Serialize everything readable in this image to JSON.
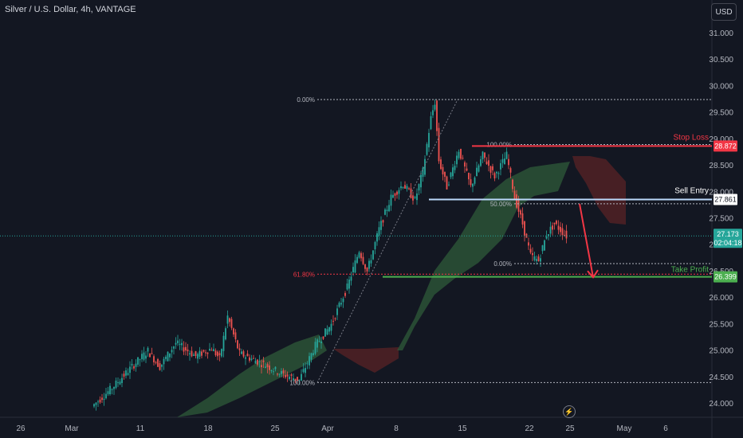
{
  "header": {
    "title": "Silver / U.S. Dollar, 4h, VANTAGE",
    "currency_button": "USD"
  },
  "colors": {
    "background": "#131722",
    "up": "#26a69a",
    "down": "#ef5350",
    "cloud_bull": "#2f5b3a",
    "cloud_bear": "#5a2326",
    "stop_loss": "#f23645",
    "sell_entry": "#bbd9fb",
    "take_profit": "#4caf50",
    "arrow": "#f23645",
    "last_price": "#26a69a"
  },
  "chart_data": {
    "type": "candlestick",
    "symbol": "Silver / U.S. Dollar",
    "interval": "4h",
    "source": "VANTAGE",
    "ylim": [
      23.9,
      31.4
    ],
    "y_ticks": [
      "31.000",
      "30.500",
      "30.000",
      "29.500",
      "29.000",
      "28.500",
      "28.000",
      "27.500",
      "27.000",
      "26.500",
      "26.000",
      "25.500",
      "25.000",
      "24.500",
      "24.000"
    ],
    "x_ticks": [
      "26",
      "Mar",
      "11",
      "18",
      "25",
      "Apr",
      "8",
      "15",
      "22",
      "25",
      "May",
      "6"
    ],
    "candles_anchor": [
      {
        "bar": 0,
        "price": 23.95
      },
      {
        "bar": 10,
        "price": 24.3
      },
      {
        "bar": 20,
        "price": 24.7
      },
      {
        "bar": 28,
        "price": 25.0
      },
      {
        "bar": 34,
        "price": 24.7
      },
      {
        "bar": 42,
        "price": 25.15
      },
      {
        "bar": 52,
        "price": 24.9
      },
      {
        "bar": 60,
        "price": 25.05
      },
      {
        "bar": 64,
        "price": 24.85
      },
      {
        "bar": 68,
        "price": 25.65
      },
      {
        "bar": 74,
        "price": 24.95
      },
      {
        "bar": 86,
        "price": 24.75
      },
      {
        "bar": 96,
        "price": 24.55
      },
      {
        "bar": 104,
        "price": 24.45
      },
      {
        "bar": 112,
        "price": 25.1
      },
      {
        "bar": 120,
        "price": 25.5
      },
      {
        "bar": 128,
        "price": 26.2
      },
      {
        "bar": 134,
        "price": 26.9
      },
      {
        "bar": 138,
        "price": 26.5
      },
      {
        "bar": 144,
        "price": 27.3
      },
      {
        "bar": 150,
        "price": 27.9
      },
      {
        "bar": 156,
        "price": 28.15
      },
      {
        "bar": 162,
        "price": 27.85
      },
      {
        "bar": 166,
        "price": 28.4
      },
      {
        "bar": 170,
        "price": 29.4
      },
      {
        "bar": 172,
        "price": 29.7
      },
      {
        "bar": 174,
        "price": 28.6
      },
      {
        "bar": 178,
        "price": 28.1
      },
      {
        "bar": 184,
        "price": 28.8
      },
      {
        "bar": 190,
        "price": 28.1
      },
      {
        "bar": 196,
        "price": 28.7
      },
      {
        "bar": 202,
        "price": 28.3
      },
      {
        "bar": 208,
        "price": 28.7
      },
      {
        "bar": 212,
        "price": 27.9
      },
      {
        "bar": 216,
        "price": 27.4
      },
      {
        "bar": 220,
        "price": 26.8
      },
      {
        "bar": 224,
        "price": 26.7
      },
      {
        "bar": 228,
        "price": 27.2
      },
      {
        "bar": 232,
        "price": 27.4
      },
      {
        "bar": 238,
        "price": 27.17
      }
    ],
    "price_labels": {
      "stop_loss": "28.872",
      "sell_entry": "27.861",
      "last_price": "27.173",
      "countdown": "02:04:18",
      "take_profit": "26.399"
    },
    "levels": {
      "stop_loss": 28.872,
      "sell_entry": 27.861,
      "take_profit": 26.399,
      "last_price": 27.173
    },
    "annotations": {
      "stop_loss_label": "Stop Loss",
      "sell_entry_label": "Sell Entry",
      "take_profit_label": "Take Profit"
    },
    "fib_large": [
      {
        "label": "0.00%",
        "price": 29.75
      },
      {
        "label": "61.80%",
        "price": 26.45
      },
      {
        "label": "100.00%",
        "price": 24.4
      }
    ],
    "fib_small": [
      {
        "label": "100.00%",
        "price": 28.9
      },
      {
        "label": "50.00%",
        "price": 27.78
      },
      {
        "label": "0.00%",
        "price": 26.65
      }
    ]
  }
}
